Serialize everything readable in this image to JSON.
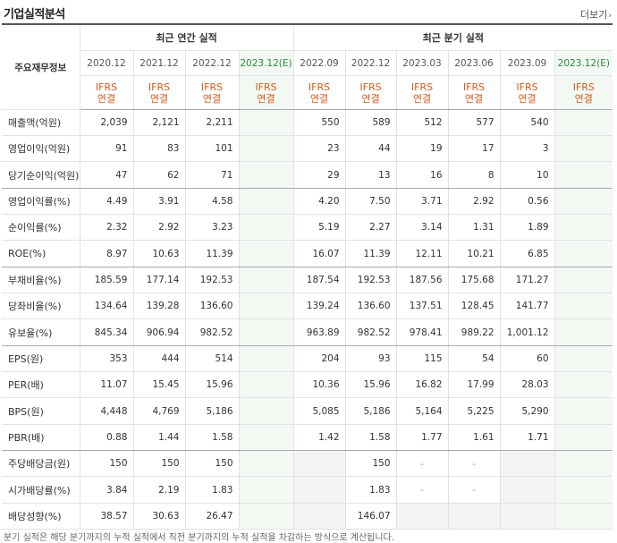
{
  "title": "기업실적분석",
  "more_label": "더보기",
  "side_header": "주요재무정보",
  "annual_header": "최근 연간 실적",
  "quarter_header": "최근 분기 실적",
  "annual_periods": [
    "2020.12",
    "2021.12",
    "2022.12",
    "2023.12(E)"
  ],
  "quarter_periods": [
    "2022.09",
    "2022.12",
    "2023.03",
    "2023.06",
    "2023.09",
    "2023.12(E)"
  ],
  "accounting_line1": "IFRS",
  "accounting_line2": "연결",
  "rows": [
    {
      "label": "매출액(억원)",
      "annual": [
        "2,039",
        "2,121",
        "2,211",
        ""
      ],
      "quarter": [
        "550",
        "589",
        "512",
        "577",
        "540",
        ""
      ]
    },
    {
      "label": "영업이익(억원)",
      "annual": [
        "91",
        "83",
        "101",
        ""
      ],
      "quarter": [
        "23",
        "44",
        "19",
        "17",
        "3",
        ""
      ]
    },
    {
      "label": "당기순이익(억원)",
      "annual": [
        "47",
        "62",
        "71",
        ""
      ],
      "quarter": [
        "29",
        "13",
        "16",
        "8",
        "10",
        ""
      ]
    },
    {
      "label": "영업이익률(%)",
      "annual": [
        "4.49",
        "3.91",
        "4.58",
        ""
      ],
      "quarter": [
        "4.20",
        "7.50",
        "3.71",
        "2.92",
        "0.56",
        ""
      ]
    },
    {
      "label": "순이익률(%)",
      "annual": [
        "2.32",
        "2.92",
        "3.23",
        ""
      ],
      "quarter": [
        "5.19",
        "2.27",
        "3.14",
        "1.31",
        "1.89",
        ""
      ]
    },
    {
      "label": "ROE(%)",
      "annual": [
        "8.97",
        "10.63",
        "11.39",
        ""
      ],
      "quarter": [
        "16.07",
        "11.39",
        "12.11",
        "10.21",
        "6.85",
        ""
      ]
    },
    {
      "label": "부채비율(%)",
      "annual": [
        "185.59",
        "177.14",
        "192.53",
        ""
      ],
      "quarter": [
        "187.54",
        "192.53",
        "187.56",
        "175.68",
        "171.27",
        ""
      ]
    },
    {
      "label": "당좌비율(%)",
      "annual": [
        "134.64",
        "139.28",
        "136.60",
        ""
      ],
      "quarter": [
        "139.24",
        "136.60",
        "137.51",
        "128.45",
        "141.77",
        ""
      ]
    },
    {
      "label": "유보율(%)",
      "annual": [
        "845.34",
        "906.94",
        "982.52",
        ""
      ],
      "quarter": [
        "963.89",
        "982.52",
        "978.41",
        "989.22",
        "1,001.12",
        ""
      ]
    },
    {
      "label": "EPS(원)",
      "annual": [
        "353",
        "444",
        "514",
        ""
      ],
      "quarter": [
        "204",
        "93",
        "115",
        "54",
        "60",
        ""
      ]
    },
    {
      "label": "PER(배)",
      "annual": [
        "11.07",
        "15.45",
        "15.96",
        ""
      ],
      "quarter": [
        "10.36",
        "15.96",
        "16.82",
        "17.99",
        "28.03",
        ""
      ]
    },
    {
      "label": "BPS(원)",
      "annual": [
        "4,448",
        "4,769",
        "5,186",
        ""
      ],
      "quarter": [
        "5,085",
        "5,186",
        "5,164",
        "5,225",
        "5,290",
        ""
      ]
    },
    {
      "label": "PBR(배)",
      "annual": [
        "0.88",
        "1.44",
        "1.58",
        ""
      ],
      "quarter": [
        "1.42",
        "1.58",
        "1.77",
        "1.61",
        "1.71",
        ""
      ]
    },
    {
      "label": "주당배당금(원)",
      "annual": [
        "150",
        "150",
        "150",
        ""
      ],
      "quarter": [
        "",
        "150",
        "-",
        "-",
        "",
        ""
      ]
    },
    {
      "label": "시가배당률(%)",
      "annual": [
        "3.84",
        "2.19",
        "1.83",
        ""
      ],
      "quarter": [
        "",
        "1.83",
        "-",
        "-",
        "",
        ""
      ]
    },
    {
      "label": "배당성향(%)",
      "annual": [
        "38.57",
        "30.63",
        "26.47",
        ""
      ],
      "quarter": [
        "",
        "146.07",
        "",
        "",
        "",
        ""
      ]
    }
  ],
  "footnote": "분기 실적은 해당 분기까지의 누적 실적에서 직전 분기까지의 누적 실적을 차감하는 방식으로 계산됩니다."
}
